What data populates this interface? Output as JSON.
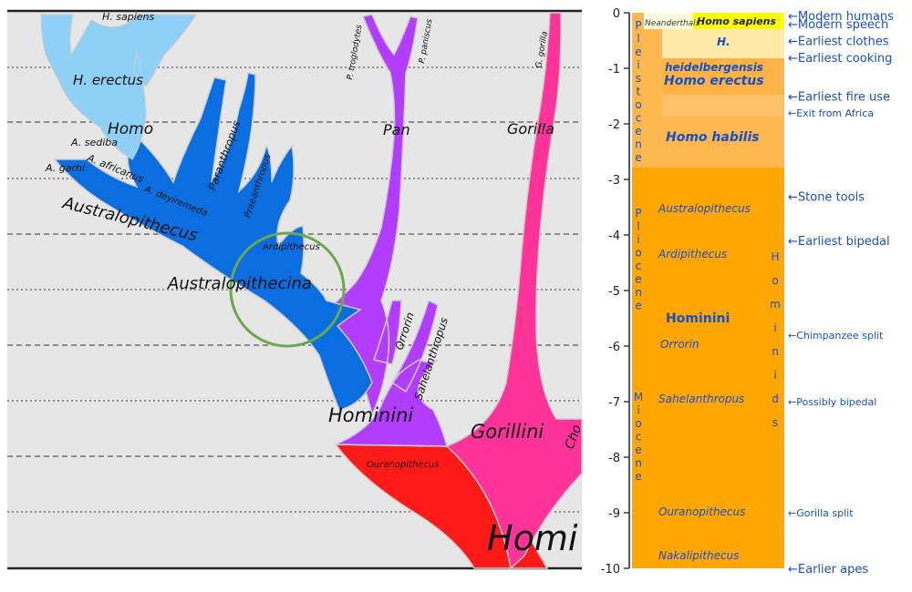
{
  "left_panel": {
    "clade_labels": {
      "h_sapiens": "H. sapiens",
      "h_erectus": "H. erectus",
      "homo": "Homo",
      "a_sediba": "A. sediba",
      "a_africanus": "A. africanus",
      "a_garhi": "A. garhi",
      "a_deyiremeda": "A. deyiremeda",
      "paranthropus": "Paranthropus",
      "praeanthropus": "Praeanthropus",
      "australopithecus": "Australopithecus",
      "ardipithecus": "Ardipithecus",
      "australopithecina": "Australopithecina",
      "p_troglodytes": "P. troglodytes",
      "p_paniscus": "P. paniscus",
      "pan": "Pan",
      "g_gorilla": "G. gorilla",
      "gorilla": "Gorilla",
      "orrorin": "Orrorin",
      "sahelanthropus": "Sahelanthropus",
      "hominini": "Hominini",
      "gorillini": "Gorillini",
      "ouranopithecus": "Ouranopithecus",
      "hominae": "Homi",
      "cho": "Cho"
    }
  },
  "timeline": {
    "ticks": [
      "0",
      "-1",
      "-2",
      "-3",
      "-4",
      "-5",
      "-6",
      "-7",
      "-8",
      "-9",
      "-10"
    ],
    "epochs": {
      "pleistocene": [
        "P",
        "l",
        "e",
        "i",
        "s",
        "t",
        "o",
        "c",
        "e",
        "n",
        "e"
      ],
      "pliocene": [
        "P",
        "l",
        "i",
        "o",
        "c",
        "e",
        "n",
        "e"
      ],
      "miocene": [
        "M",
        "i",
        "o",
        "c",
        "e",
        "n",
        "e"
      ]
    },
    "hominids_letters": [
      "H",
      "o",
      "m",
      "i",
      "n",
      "i",
      "d",
      "s"
    ],
    "taxa": {
      "neanderthals": "Neanderthals",
      "homo_sapiens": "Homo sapiens",
      "h": "H.",
      "heidelbergensis": "heidelbergensis",
      "homo_erectus": "Homo erectus",
      "homo_habilis": "Homo habilis",
      "australopithecus": "Australopithecus",
      "ardipithecus": "Ardipithecus",
      "hominini": "Hominini",
      "orrorin": "Orrorin",
      "sahelanthropus": "Sahelanthropus",
      "ouranopithecus": "Ouranopithecus",
      "nakalipithecus": "Nakalipithecus"
    },
    "events": [
      {
        "label": "Modern humans",
        "ma": 0.05,
        "style": "large"
      },
      {
        "label": "Modern speech",
        "ma": 0.2,
        "style": "large"
      },
      {
        "label": "Earliest clothes",
        "ma": 0.5,
        "style": "large"
      },
      {
        "label": "Earliest cooking",
        "ma": 0.8,
        "style": "large"
      },
      {
        "label": "Earliest fire use",
        "ma": 1.5,
        "style": "large"
      },
      {
        "label": "Exit from Africa",
        "ma": 1.8,
        "style": "small"
      },
      {
        "label": "Stone tools",
        "ma": 3.3,
        "style": "large"
      },
      {
        "label": "Earliest bipedal",
        "ma": 4.1,
        "style": "large"
      },
      {
        "label": "Chimpanzee split",
        "ma": 5.8,
        "style": "small"
      },
      {
        "label": "Possibly bipedal",
        "ma": 7.0,
        "style": "small"
      },
      {
        "label": "Gorilla split",
        "ma": 9.0,
        "style": "small"
      },
      {
        "label": "Earlier apes",
        "ma": 10.0,
        "style": "large"
      }
    ],
    "colors": {
      "orange": "#ffa600",
      "light_orange": "#ffb84d",
      "pale": "#ffe9a8",
      "yellow": "#ffff00",
      "event_blue": "#1a4fc4"
    }
  }
}
